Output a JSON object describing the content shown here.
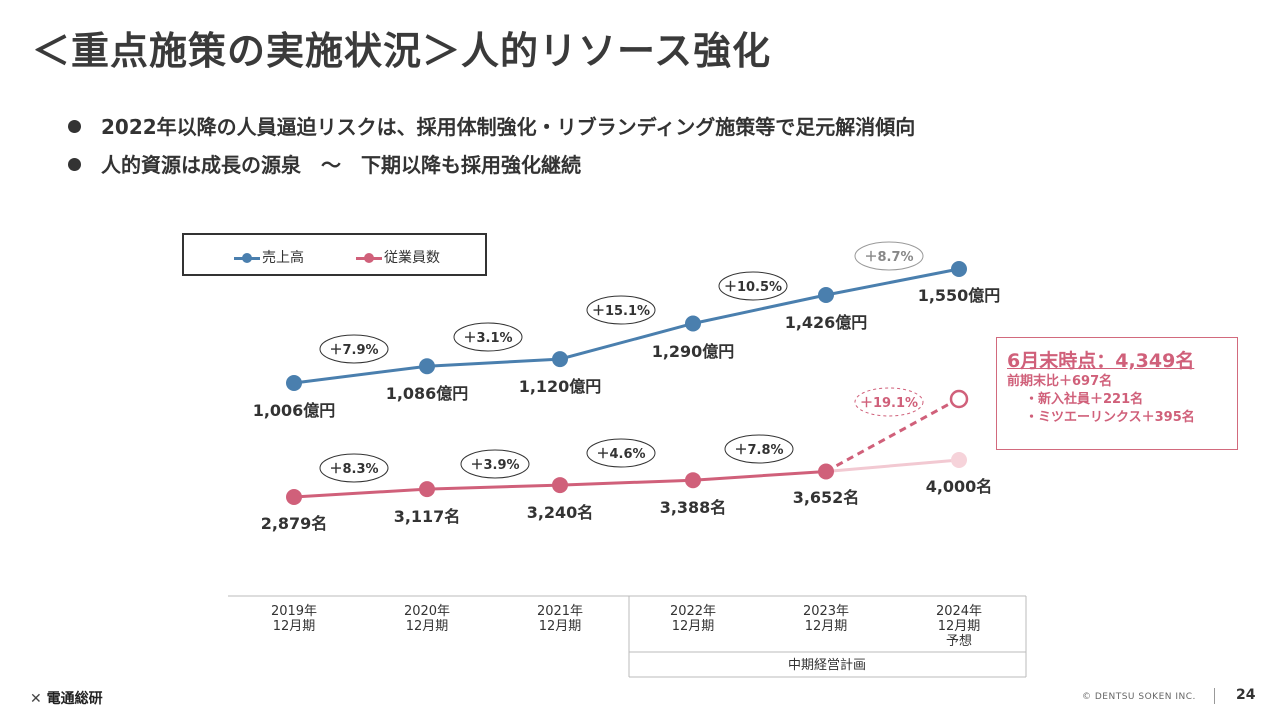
{
  "title": "＜重点施策の実施状況＞人的リソース強化",
  "bullets": [
    "2022年以降の人員逼迫リスクは、採用体制強化・リブランディング施策等で足元解消傾向",
    "人的資源は成長の源泉　～　下期以降も採用強化継続"
  ],
  "chart_data": {
    "type": "line",
    "categories": [
      "2019年\n12月期",
      "2020年\n12月期",
      "2021年\n12月期",
      "2022年\n12月期",
      "2023年\n12月期",
      "2024年\n12月期\n予想"
    ],
    "series": [
      {
        "name": "売上高",
        "color": "#4a7fae",
        "values": [
          1006,
          1086,
          1120,
          1290,
          1426,
          1550
        ],
        "labels": [
          "1,006億円",
          "1,086億円",
          "1,120億円",
          "1,290億円",
          "1,426億円",
          "1,550億円"
        ],
        "growth": [
          "＋7.9%",
          "＋3.1%",
          "＋15.1%",
          "＋10.5%",
          "＋8.7%"
        ]
      },
      {
        "name": "従業員数",
        "color": "#d0607a",
        "values": [
          2879,
          3117,
          3240,
          3388,
          3652,
          4000
        ],
        "labels": [
          "2,879名",
          "3,117名",
          "3,240名",
          "3,388名",
          "3,652名",
          "4,000名"
        ],
        "growth": [
          "＋8.3%",
          "＋3.9%",
          "＋4.6%",
          "＋7.8%"
        ],
        "extra_point": {
          "value": 4349,
          "growth": "＋19.1%"
        }
      }
    ],
    "group_label": "中期経営計画"
  },
  "callout": {
    "head": "6月末時点：4,349名",
    "lines": [
      "前期末比＋697名",
      "・新入社員＋221名",
      "・ミツエーリンクス＋395名"
    ]
  },
  "footer": {
    "logo": "電通総研",
    "copyright": "© DENTSU SOKEN INC.",
    "page": "24"
  }
}
